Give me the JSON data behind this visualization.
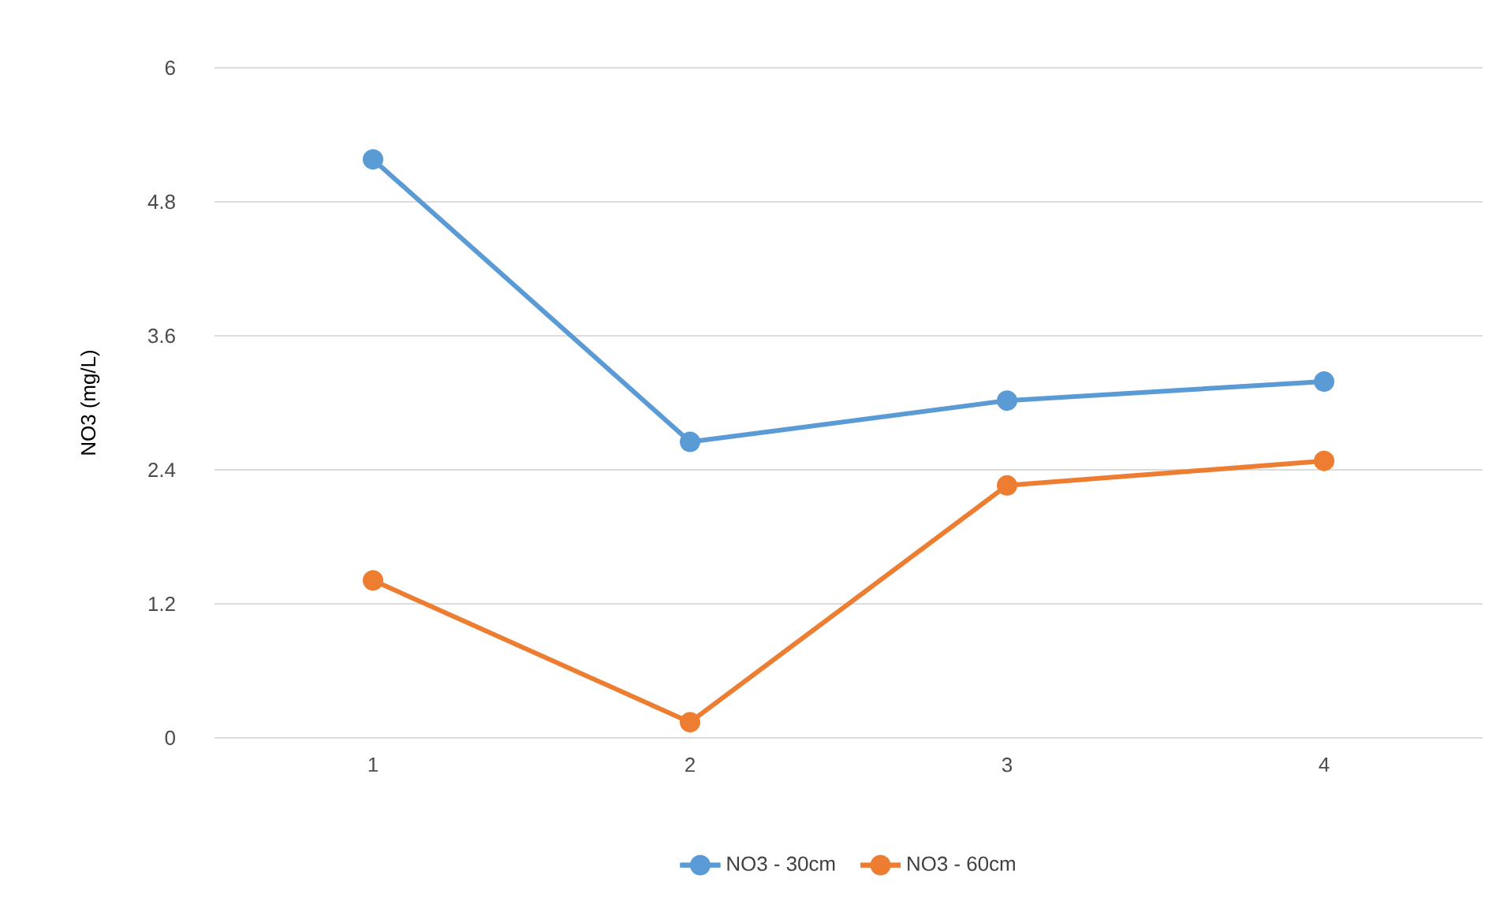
{
  "chart_data": {
    "type": "line",
    "ylabel": "NO3 (mg/L)",
    "categories": [
      "1",
      "2",
      "3",
      "4"
    ],
    "series": [
      {
        "name": "NO3 - 30cm",
        "color": "#5b9bd5",
        "values": [
          5.18,
          2.65,
          3.02,
          3.19
        ]
      },
      {
        "name": "NO3 - 60cm",
        "color": "#ed7d31",
        "values": [
          1.41,
          0.14,
          2.26,
          2.48
        ]
      }
    ],
    "ylim": [
      0,
      6
    ],
    "yticks": [
      0,
      1.2,
      2.4,
      3.6,
      4.8,
      6
    ],
    "grid": "y",
    "legend": "bottom",
    "marker": "circle"
  }
}
